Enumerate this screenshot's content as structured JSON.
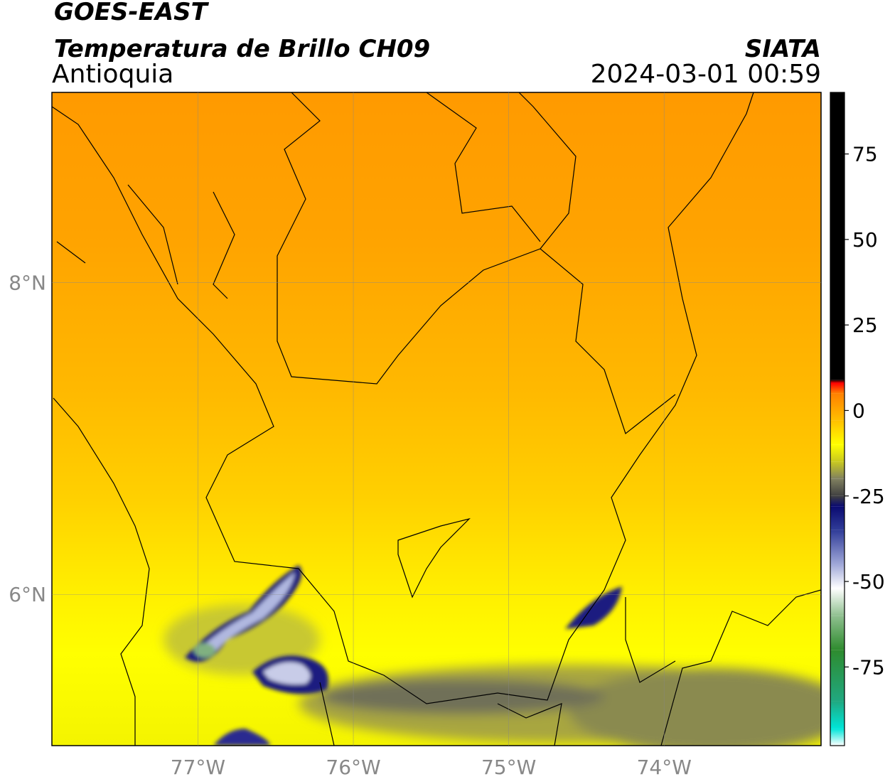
{
  "header": {
    "title": "GOES-EAST",
    "subtitle": "Temperatura de Brillo CH09",
    "region": "Antioquia",
    "source": "SIATA",
    "datetime": "2024-03-01 00:59"
  },
  "chart_data": {
    "type": "map",
    "xlim": [
      -77.94,
      -72.99
    ],
    "ylim": [
      5.03,
      9.22
    ],
    "xticks": [
      {
        "value": -77,
        "label": "77°W"
      },
      {
        "value": -76,
        "label": "76°W"
      },
      {
        "value": -75,
        "label": "75°W"
      },
      {
        "value": -74,
        "label": "74°W"
      }
    ],
    "yticks": [
      {
        "value": 6,
        "label": "6°N"
      },
      {
        "value": 8,
        "label": "8°N"
      }
    ],
    "grid": true,
    "colorbar": {
      "lim": [
        -98,
        93
      ],
      "ticks": [
        -75,
        -50,
        -25,
        0,
        25,
        50,
        75
      ],
      "stops": [
        {
          "value": -98,
          "color": "#ffffff"
        },
        {
          "value": -93,
          "color": "#00e5d8"
        },
        {
          "value": -85,
          "color": "#20a880"
        },
        {
          "value": -70,
          "color": "#2e8b2e"
        },
        {
          "value": -60,
          "color": "#90c090"
        },
        {
          "value": -52,
          "color": "#ffffff"
        },
        {
          "value": -45,
          "color": "#a0a8d8"
        },
        {
          "value": -35,
          "color": "#303c98"
        },
        {
          "value": -28,
          "color": "#0a0a70"
        },
        {
          "value": -25,
          "color": "#404040"
        },
        {
          "value": -20,
          "color": "#808060"
        },
        {
          "value": -15,
          "color": "#c8c820"
        },
        {
          "value": -10,
          "color": "#ffff00"
        },
        {
          "value": -3,
          "color": "#ffc000"
        },
        {
          "value": 5,
          "color": "#ff8000"
        },
        {
          "value": 8,
          "color": "#ff0000"
        },
        {
          "value": 9,
          "color": "#000000"
        }
      ]
    }
  }
}
